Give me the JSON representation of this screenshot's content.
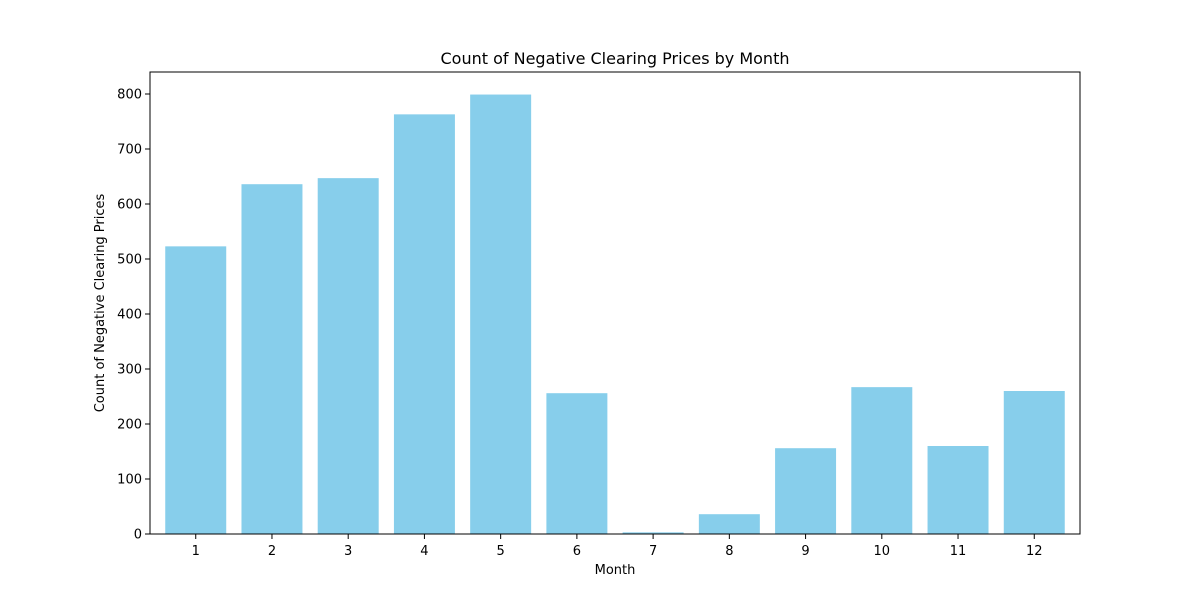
{
  "chart_data": {
    "type": "bar",
    "title": "Count of Negative Clearing Prices by Month",
    "xlabel": "Month",
    "ylabel": "Count of Negative Clearing Prices",
    "categories": [
      "1",
      "2",
      "3",
      "4",
      "5",
      "6",
      "7",
      "8",
      "9",
      "10",
      "11",
      "12"
    ],
    "values": [
      523,
      636,
      647,
      763,
      799,
      256,
      3,
      36,
      156,
      267,
      160,
      260
    ],
    "ylim": [
      0,
      840
    ],
    "yticks": [
      "0",
      "100",
      "200",
      "300",
      "400",
      "500",
      "600",
      "700",
      "800"
    ],
    "bar_color": "#87ceeb",
    "grid": false,
    "legend": "none"
  }
}
